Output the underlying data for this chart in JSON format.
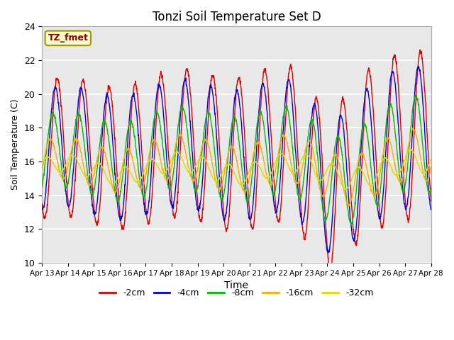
{
  "title": "Tonzi Soil Temperature Set D",
  "xlabel": "Time",
  "ylabel": "Soil Temperature (C)",
  "ylim": [
    10,
    24
  ],
  "yticks": [
    10,
    12,
    14,
    16,
    18,
    20,
    22,
    24
  ],
  "legend_label": "TZ_fmet",
  "series_labels": [
    "-2cm",
    "-4cm",
    "-8cm",
    "-16cm",
    "-32cm"
  ],
  "series_colors": [
    "#dd0000",
    "#0000dd",
    "#00bb00",
    "#ffaa00",
    "#dddd00"
  ],
  "fig_facecolor": "#ffffff",
  "plot_facecolor": "#e8e8e8",
  "start_day": 13,
  "end_day": 28,
  "n_points": 1500
}
